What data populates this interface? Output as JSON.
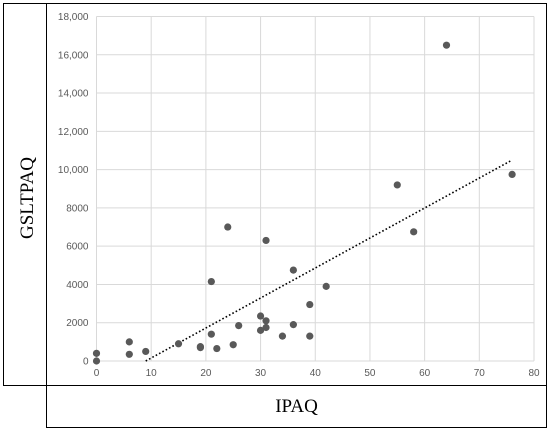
{
  "chart_data": {
    "type": "scatter",
    "title": "",
    "xlabel": "IPAQ",
    "ylabel": "GSLTPAQ",
    "xlim": [
      0,
      80
    ],
    "ylim": [
      0,
      18000
    ],
    "x_ticks": [
      0,
      10,
      20,
      30,
      40,
      50,
      60,
      70,
      80
    ],
    "x_tick_labels": [
      "0",
      "10",
      "20",
      "30",
      "40",
      "50",
      "60",
      "70",
      "80"
    ],
    "y_ticks": [
      0,
      2000,
      4000,
      6000,
      8000,
      10000,
      12000,
      14000,
      16000,
      18000
    ],
    "y_tick_labels": [
      "0",
      "2000",
      "4000",
      "6000",
      "8000",
      "10,000",
      "12,000",
      "14,000",
      "16,000",
      "18,000"
    ],
    "grid": true,
    "legend": "none",
    "marker_color": "#595959",
    "trendline": {
      "style": "dotted",
      "color": "#000000",
      "x": [
        9,
        76
      ],
      "y": [
        0,
        10500
      ]
    },
    "points": [
      {
        "x": 0,
        "y": 0
      },
      {
        "x": 0,
        "y": 400
      },
      {
        "x": 6,
        "y": 350
      },
      {
        "x": 6,
        "y": 1000
      },
      {
        "x": 9,
        "y": 500
      },
      {
        "x": 15,
        "y": 900
      },
      {
        "x": 19,
        "y": 750
      },
      {
        "x": 19,
        "y": 700
      },
      {
        "x": 21,
        "y": 1400
      },
      {
        "x": 21,
        "y": 4150
      },
      {
        "x": 22,
        "y": 650
      },
      {
        "x": 24,
        "y": 7000
      },
      {
        "x": 25,
        "y": 850
      },
      {
        "x": 26,
        "y": 1850
      },
      {
        "x": 30,
        "y": 1600
      },
      {
        "x": 30,
        "y": 2350
      },
      {
        "x": 31,
        "y": 1750
      },
      {
        "x": 31,
        "y": 2100
      },
      {
        "x": 31,
        "y": 6300
      },
      {
        "x": 34,
        "y": 1300
      },
      {
        "x": 36,
        "y": 1900
      },
      {
        "x": 36,
        "y": 4750
      },
      {
        "x": 39,
        "y": 1300
      },
      {
        "x": 39,
        "y": 2950
      },
      {
        "x": 42,
        "y": 3900
      },
      {
        "x": 55,
        "y": 9200
      },
      {
        "x": 58,
        "y": 6750
      },
      {
        "x": 64,
        "y": 16500
      },
      {
        "x": 76,
        "y": 9750
      }
    ]
  }
}
